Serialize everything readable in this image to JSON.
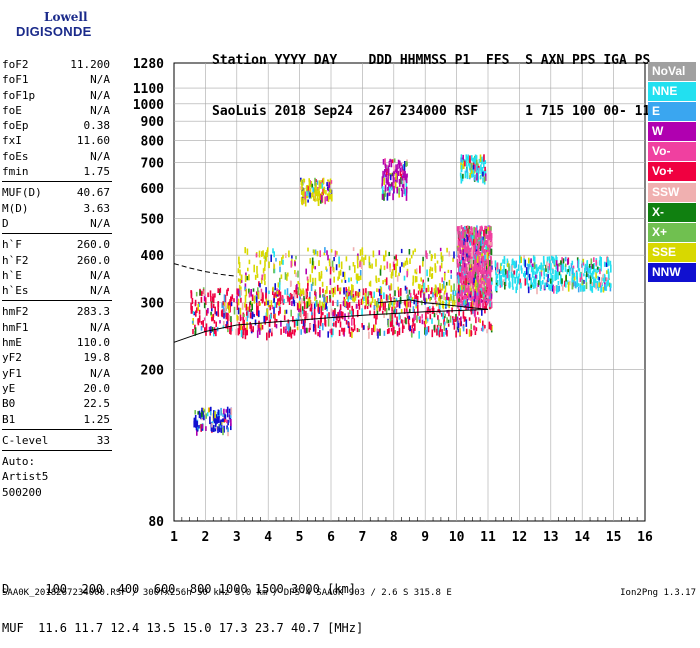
{
  "logo": {
    "line1": "Lowell",
    "line2": "DIGISONDE"
  },
  "header": {
    "row1": [
      "Station",
      "YYYY",
      "DAY",
      "DDD",
      "HHMMSS",
      "P1",
      "FFS",
      "S",
      "AXN",
      "PPS",
      "IGA",
      "PS"
    ],
    "row2": [
      "SaoLuis",
      "2018",
      "Sep24",
      "267",
      "234000",
      "RSF",
      "",
      "1",
      "715",
      "100",
      "00-",
      "11"
    ]
  },
  "params": [
    [
      {
        "name": "foF2",
        "value": "11.200"
      },
      {
        "name": "foF1",
        "value": "N/A"
      },
      {
        "name": "foF1p",
        "value": "N/A"
      },
      {
        "name": "foE",
        "value": "N/A"
      },
      {
        "name": "foEp",
        "value": "0.38"
      },
      {
        "name": "fxI",
        "value": "11.60"
      },
      {
        "name": "foEs",
        "value": "N/A"
      },
      {
        "name": "fmin",
        "value": "1.75"
      }
    ],
    [
      {
        "name": "MUF(D)",
        "value": "40.67"
      },
      {
        "name": "M(D)",
        "value": "3.63"
      },
      {
        "name": "D",
        "value": "N/A"
      }
    ],
    [
      {
        "name": "h`F",
        "value": "260.0"
      },
      {
        "name": "h`F2",
        "value": "260.0"
      },
      {
        "name": "h`E",
        "value": "N/A"
      },
      {
        "name": "h`Es",
        "value": "N/A"
      }
    ],
    [
      {
        "name": "hmF2",
        "value": "283.3"
      },
      {
        "name": "hmF1",
        "value": "N/A"
      },
      {
        "name": "hmE",
        "value": "110.0"
      },
      {
        "name": "yF2",
        "value": "19.8"
      },
      {
        "name": "yF1",
        "value": "N/A"
      },
      {
        "name": "yE",
        "value": "20.0"
      },
      {
        "name": "B0",
        "value": "22.5"
      },
      {
        "name": "B1",
        "value": "1.25"
      }
    ],
    [
      {
        "name": "C-level",
        "value": "33"
      }
    ]
  ],
  "auto": {
    "line1": "Auto:",
    "line2": "Artist5",
    "line3": "500200"
  },
  "legend": [
    {
      "label": "NoVal",
      "color": "#a0a0a0"
    },
    {
      "label": "NNE",
      "color": "#22e0f0"
    },
    {
      "label": "E",
      "color": "#3aa6f0"
    },
    {
      "label": "W",
      "color": "#b000b0"
    },
    {
      "label": "Vo-",
      "color": "#f040a0"
    },
    {
      "label": "Vo+",
      "color": "#f00040"
    },
    {
      "label": "SSW",
      "color": "#f0b0b0"
    },
    {
      "label": "X-",
      "color": "#108010"
    },
    {
      "label": "X+",
      "color": "#70c050"
    },
    {
      "label": "SSE",
      "color": "#d8d800"
    },
    {
      "label": "NNW",
      "color": "#1010d0"
    }
  ],
  "bottom": {
    "d_label": "D",
    "d_values": [
      "100",
      "200",
      "400",
      "600",
      "800",
      "1000",
      "1500",
      "3000"
    ],
    "d_unit": "[km]",
    "muf_label": "MUF",
    "muf_values": [
      "11.6",
      "11.7",
      "12.4",
      "13.5",
      "15.0",
      "17.3",
      "23.7",
      "40.7"
    ],
    "muf_unit": "[MHz]"
  },
  "footer": {
    "left": "SAA0K_2018267234000.RSF / 300fx256h 50 kHz 5.0 km / DPS-4 SAA0K 903 / 2.6 S 315.8 E",
    "right": "Ion2Png 1.3.17"
  },
  "chart_data": {
    "type": "scatter",
    "x_ticks": [
      1,
      2,
      3,
      4,
      5,
      6,
      7,
      8,
      9,
      10,
      11,
      12,
      13,
      14,
      15,
      16
    ],
    "y_ticks": [
      80,
      200,
      300,
      400,
      500,
      600,
      700,
      800,
      900,
      1000,
      1100,
      1280
    ],
    "xlim": [
      1,
      16
    ],
    "ylim": [
      80,
      1280
    ],
    "y_scale": "log",
    "grid": true,
    "legend_position": "right",
    "echo_regions": [
      {
        "f": [
          1.5,
          11.1
        ],
        "h": [
          250,
          330
        ],
        "legend": "Vo+",
        "density": "high"
      },
      {
        "f": [
          3.0,
          10.0
        ],
        "h": [
          300,
          420
        ],
        "legend": "SSE",
        "density": "medium"
      },
      {
        "f": [
          10.0,
          11.1
        ],
        "h": [
          300,
          480
        ],
        "legend": "Vo-",
        "density": "high"
      },
      {
        "f": [
          11.2,
          14.9
        ],
        "h": [
          330,
          400
        ],
        "legend": "NNE",
        "density": "medium"
      },
      {
        "f": [
          5.0,
          6.0
        ],
        "h": [
          560,
          640
        ],
        "legend": "SSE",
        "density": "low"
      },
      {
        "f": [
          7.6,
          8.4
        ],
        "h": [
          580,
          720
        ],
        "legend": "W",
        "density": "low"
      },
      {
        "f": [
          10.1,
          10.9
        ],
        "h": [
          640,
          740
        ],
        "legend": "NNE",
        "density": "low"
      },
      {
        "f": [
          1.6,
          2.8
        ],
        "h": [
          140,
          160
        ],
        "legend": "NNW",
        "density": "low"
      }
    ],
    "trace_lower": {
      "f": [
        1.0,
        1.5,
        2.0,
        3.0,
        4.0,
        5.0,
        6.0,
        7.0,
        8.0,
        9.0,
        10.0,
        10.5,
        11.0
      ],
      "h": [
        236,
        244,
        252,
        262,
        266,
        270,
        274,
        278,
        281,
        284,
        286,
        287,
        288
      ]
    },
    "trace_upper": {
      "f": [
        7.5,
        8.5,
        9.0,
        9.5,
        10.0,
        10.5,
        11.0
      ],
      "h": [
        300,
        305,
        300,
        297,
        294,
        291,
        288
      ]
    },
    "trace_dashed": {
      "f": [
        1.0,
        1.5,
        2.0,
        2.5,
        3.0
      ],
      "h": [
        380,
        370,
        362,
        356,
        352
      ]
    }
  }
}
